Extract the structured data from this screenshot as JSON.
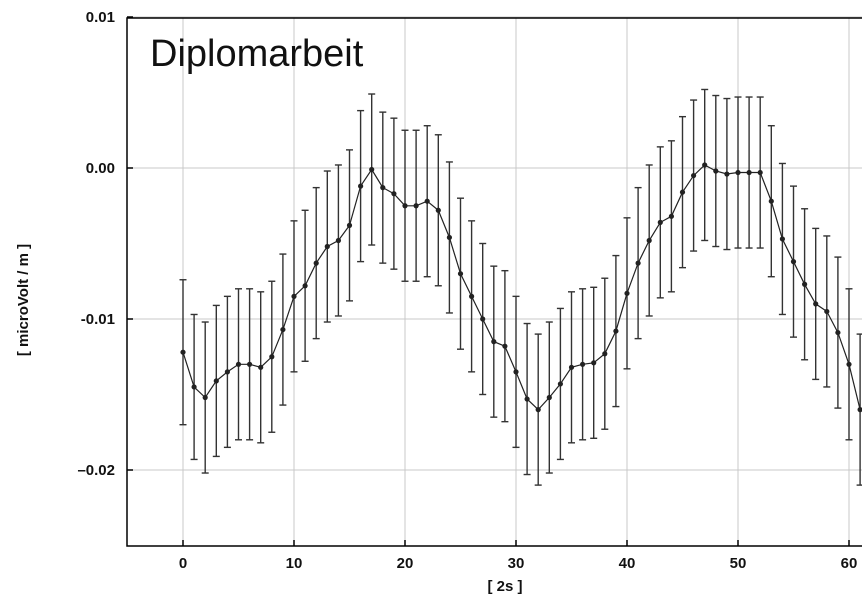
{
  "chart_data": {
    "type": "line",
    "title": "Diplomarbeit",
    "xlabel": "[ 2s ]",
    "ylabel": "[ microVolt / m ]",
    "xlim": [
      -3,
      61
    ],
    "ylim": [
      -0.025,
      0.01
    ],
    "xticks": [
      0,
      10,
      20,
      30,
      40,
      50,
      60
    ],
    "yticks": [
      -0.02,
      -0.01,
      0.0,
      0.01
    ],
    "xtick_labels": [
      "0",
      "10",
      "20",
      "30",
      "40",
      "50",
      "60"
    ],
    "ytick_labels": [
      "–0.02",
      "-0.01",
      "0.00",
      "0.01"
    ],
    "grid": true,
    "series": [
      {
        "x": [
          0,
          1,
          2,
          3,
          4,
          5,
          6,
          7,
          8,
          9,
          10,
          11,
          12,
          13,
          14,
          15,
          16,
          17,
          18,
          19,
          20,
          21,
          22,
          23,
          24,
          25,
          26,
          27,
          28,
          29,
          30,
          31,
          32,
          33,
          34,
          35,
          36,
          37,
          38,
          39,
          40,
          41,
          42,
          43,
          44,
          45,
          46,
          47,
          48,
          49,
          50,
          51,
          52,
          53,
          54,
          55,
          56,
          57,
          58,
          59,
          60,
          61
        ],
        "y": [
          -0.0122,
          -0.0145,
          -0.0152,
          -0.0141,
          -0.0135,
          -0.013,
          -0.013,
          -0.0132,
          -0.0125,
          -0.0107,
          -0.0085,
          -0.0078,
          -0.0063,
          -0.0052,
          -0.0048,
          -0.0038,
          -0.0012,
          -0.0001,
          -0.0013,
          -0.0017,
          -0.0025,
          -0.0025,
          -0.0022,
          -0.0028,
          -0.0046,
          -0.007,
          -0.0085,
          -0.01,
          -0.0115,
          -0.0118,
          -0.0135,
          -0.0153,
          -0.016,
          -0.0152,
          -0.0143,
          -0.0132,
          -0.013,
          -0.0129,
          -0.0123,
          -0.0108,
          -0.0083,
          -0.0063,
          -0.0048,
          -0.0036,
          -0.0032,
          -0.0016,
          -0.0005,
          0.0002,
          -0.0002,
          -0.0004,
          -0.0003,
          -0.0003,
          -0.0003,
          -0.0022,
          -0.0047,
          -0.0062,
          -0.0077,
          -0.009,
          -0.0095,
          -0.0109,
          -0.013,
          -0.016
        ],
        "error": [
          0.0048,
          0.0048,
          0.005,
          0.005,
          0.005,
          0.005,
          0.005,
          0.005,
          0.005,
          0.005,
          0.005,
          0.005,
          0.005,
          0.005,
          0.005,
          0.005,
          0.005,
          0.005,
          0.005,
          0.005,
          0.005,
          0.005,
          0.005,
          0.005,
          0.005,
          0.005,
          0.005,
          0.005,
          0.005,
          0.005,
          0.005,
          0.005,
          0.005,
          0.005,
          0.005,
          0.005,
          0.005,
          0.005,
          0.005,
          0.005,
          0.005,
          0.005,
          0.005,
          0.005,
          0.005,
          0.005,
          0.005,
          0.005,
          0.005,
          0.005,
          0.005,
          0.005,
          0.005,
          0.005,
          0.005,
          0.005,
          0.005,
          0.005,
          0.005,
          0.005,
          0.005,
          0.005
        ]
      }
    ]
  },
  "colors": {
    "line": "#222222",
    "errorbar": "#333333",
    "grid": "#c8c8c8",
    "axis": "#000000"
  }
}
